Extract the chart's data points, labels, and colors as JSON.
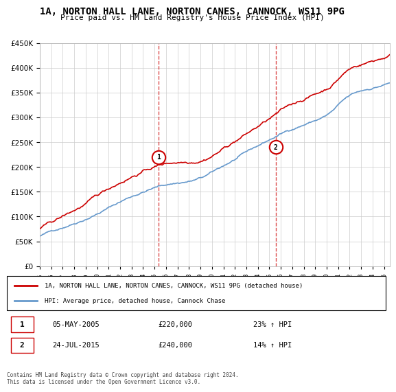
{
  "title": "1A, NORTON HALL LANE, NORTON CANES, CANNOCK, WS11 9PG",
  "subtitle": "Price paid vs. HM Land Registry's House Price Index (HPI)",
  "ylabel_ticks": [
    "£0",
    "£50K",
    "£100K",
    "£150K",
    "£200K",
    "£250K",
    "£300K",
    "£350K",
    "£400K",
    "£450K"
  ],
  "ylim": [
    0,
    450000
  ],
  "xlim_start": 1995.0,
  "xlim_end": 2025.5,
  "red_line_color": "#cc0000",
  "blue_line_color": "#6699cc",
  "marker1_x": 2005.35,
  "marker1_y": 220000,
  "marker2_x": 2015.55,
  "marker2_y": 240000,
  "vline1_x": 2005.35,
  "vline2_x": 2015.55,
  "legend_line1": "1A, NORTON HALL LANE, NORTON CANES, CANNOCK, WS11 9PG (detached house)",
  "legend_line2": "HPI: Average price, detached house, Cannock Chase",
  "table_row1_num": "1",
  "table_row1_date": "05-MAY-2005",
  "table_row1_price": "£220,000",
  "table_row1_hpi": "23% ↑ HPI",
  "table_row2_num": "2",
  "table_row2_date": "24-JUL-2015",
  "table_row2_price": "£240,000",
  "table_row2_hpi": "14% ↑ HPI",
  "footnote": "Contains HM Land Registry data © Crown copyright and database right 2024.\nThis data is licensed under the Open Government Licence v3.0.",
  "background_color": "#ffffff",
  "plot_bg_color": "#ffffff",
  "grid_color": "#cccccc"
}
